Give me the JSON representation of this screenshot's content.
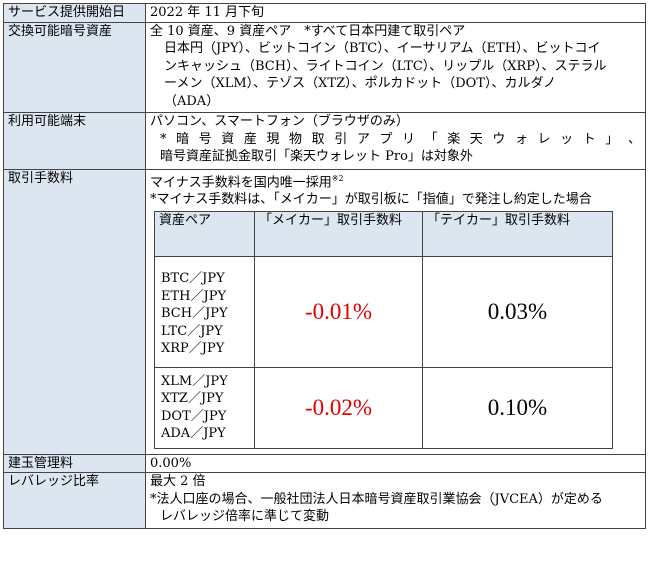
{
  "rows": {
    "start": {
      "label": "サービス提供開始日",
      "value": "2022 年 11 月下旬"
    },
    "assets": {
      "label": "交換可能暗号資産",
      "line1": "全 10 資産、9 資産ペア　*すべて日本円建て取引ペア",
      "line2": "日本円（JPY）、ビットコイン（BTC）、イーサリアム（ETH）、ビットコイ",
      "line3": "ンキャッシュ（BCH）、ライトコイン（LTC）、リップル（XRP）、ステラル",
      "line4": "ーメン（XLM）、テゾス（XTZ）、ポルカドット（DOT）、カルダノ",
      "line5": "（ADA）"
    },
    "devices": {
      "label": "利用可能端末",
      "line1": "パソコン、スマートフォン（ブラウザのみ）",
      "line2_parts": [
        "*",
        "暗",
        "号",
        "資",
        "産",
        "現",
        "物",
        "取",
        "引",
        "ア",
        "プ",
        "リ",
        "「",
        "楽",
        "天",
        "ウ",
        "ォ",
        "レ",
        "ッ",
        "ト",
        "」",
        "、"
      ],
      "line3": "暗号資産証拠金取引「楽天ウォレット Pro」は対象外"
    },
    "fees": {
      "label": "取引手数料",
      "line1": "マイナス手数料を国内唯一採用",
      "line1_sup": "※2",
      "line2": "*マイナス手数料は、「メイカー」が取引板に「指値」で発注し約定した場合",
      "table": {
        "header_pair": "資産ペア",
        "header_maker": "「メイカー」取引手数料",
        "header_taker": "「テイカー」取引手数料",
        "group1_pairs": [
          "BTC／JPY",
          "ETH／JPY",
          "BCH／JPY",
          "LTC／JPY",
          "XRP／JPY"
        ],
        "group1_maker": "-0.01%",
        "group1_taker": "0.03%",
        "group2_pairs": [
          "XLM／JPY",
          "XTZ／JPY",
          "DOT／JPY",
          "ADA／JPY"
        ],
        "group2_maker": "-0.02%",
        "group2_taker": "0.10%"
      }
    },
    "position": {
      "label": "建玉管理料",
      "value": "0.00%"
    },
    "leverage": {
      "label": "レバレッジ比率",
      "line1": "最大 2 倍",
      "line2": "*法人口座の場合、一般社団法人日本暗号資産取引業協会（JVCEA）が定める",
      "line3": "レバレッジ倍率に準じて変動"
    }
  },
  "colors": {
    "label_bg": "#dce6f1",
    "negative": "#e00000",
    "border": "#444444"
  }
}
